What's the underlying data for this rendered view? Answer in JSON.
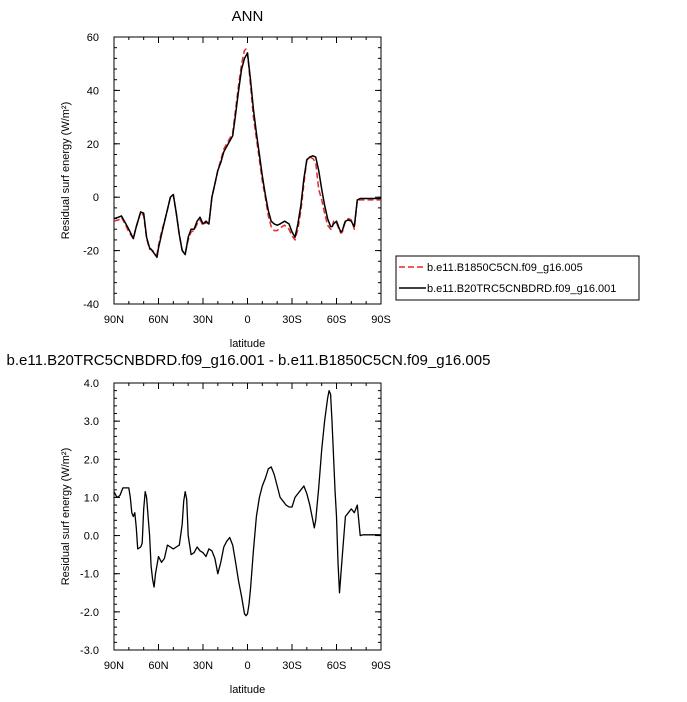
{
  "chart_data": [
    {
      "type": "line",
      "title": "ANN",
      "xlabel": "latitude",
      "ylabel": "Residual surf energy (W/m²)",
      "x_ticks": [
        90,
        60,
        30,
        0,
        -30,
        -60,
        -90
      ],
      "x_tick_labels": [
        "90N",
        "60N",
        "30N",
        "0",
        "30S",
        "60S",
        "90S"
      ],
      "xlim": [
        90,
        -90
      ],
      "ylim": [
        -40,
        60
      ],
      "y_ticks": [
        -40,
        -20,
        0,
        20,
        40,
        60
      ],
      "y_tick_labels": [
        "-40",
        "-20",
        "0",
        "20",
        "40",
        "60"
      ],
      "legend_position": "right",
      "series": [
        {
          "name": "b.e11.B1850C5CN.f09_g16.005",
          "color": "#e8272b",
          "dash": "dashed",
          "x": [
            90,
            87,
            85,
            83,
            80,
            77,
            75,
            72,
            70,
            68,
            66,
            65,
            63,
            61,
            60,
            58,
            55,
            52,
            50,
            48,
            46,
            44,
            42,
            40,
            38,
            36,
            34,
            32,
            30,
            28,
            26,
            24,
            22,
            20,
            18,
            16,
            14,
            12,
            10,
            8,
            6,
            4,
            2,
            1,
            0,
            -2,
            -4,
            -6,
            -8,
            -10,
            -12,
            -14,
            -16,
            -18,
            -20,
            -22,
            -25,
            -28,
            -30,
            -32,
            -34,
            -36,
            -38,
            -40,
            -42,
            -44,
            -46,
            -48,
            -50,
            -52,
            -54,
            -56,
            -57,
            -58,
            -60,
            -62,
            -63,
            -64,
            -65,
            -66,
            -68,
            -70,
            -72,
            -74,
            -76,
            -78,
            -80,
            -82,
            -85,
            -88,
            -90
          ],
          "y": [
            -9,
            -8.5,
            -7.5,
            -9.5,
            -13,
            -15.5,
            -11,
            -5.5,
            -7,
            -15.5,
            -19.5,
            -19.5,
            -20.5,
            -21.5,
            -18,
            -13,
            -7,
            0,
            1,
            -6,
            -14,
            -20,
            -21,
            -16,
            -13,
            -12.5,
            -10,
            -8.5,
            -10.5,
            -9.5,
            -10,
            0,
            5,
            10,
            14,
            18,
            20,
            22,
            24,
            33,
            42,
            50,
            55,
            55.5,
            54,
            42,
            30,
            22,
            14,
            6,
            0,
            -7,
            -11,
            -12.5,
            -12.5,
            -11.5,
            -10.5,
            -12,
            -14.5,
            -16,
            -12,
            -5,
            5,
            14,
            15,
            14.5,
            13,
            3,
            -1,
            -6,
            -10.5,
            -12,
            -12,
            -9,
            -9.5,
            -12.5,
            -13.5,
            -13,
            -11,
            -9,
            -8,
            -8.5,
            -12,
            -1,
            -1,
            -1,
            -1,
            -1,
            -1,
            -1,
            -1
          ],
          "stroke_width": 1.5
        },
        {
          "name": "b.e11.B20TRC5CNBDRD.f09_g16.001",
          "color": "#000000",
          "dash": "solid",
          "x": [
            90,
            87,
            85,
            83,
            80,
            77,
            75,
            72,
            70,
            68,
            66,
            65,
            63,
            61,
            60,
            58,
            55,
            52,
            50,
            48,
            46,
            44,
            42,
            40,
            38,
            36,
            34,
            32,
            30,
            28,
            26,
            24,
            22,
            20,
            18,
            16,
            14,
            12,
            10,
            8,
            6,
            4,
            2,
            1,
            0,
            -2,
            -4,
            -6,
            -8,
            -10,
            -12,
            -14,
            -16,
            -18,
            -20,
            -22,
            -25,
            -28,
            -30,
            -32,
            -34,
            -36,
            -38,
            -40,
            -42,
            -44,
            -46,
            -48,
            -50,
            -52,
            -54,
            -56,
            -57,
            -58,
            -60,
            -62,
            -63,
            -64,
            -65,
            -66,
            -68,
            -70,
            -72,
            -74,
            -76,
            -78,
            -80,
            -82,
            -85,
            -88,
            -90
          ],
          "y": [
            -8,
            -7.5,
            -7,
            -9,
            -12,
            -15.5,
            -11,
            -5.5,
            -6,
            -15,
            -19,
            -19.5,
            -21,
            -22.5,
            -19,
            -14,
            -7,
            0,
            1,
            -6,
            -14,
            -20,
            -21.5,
            -15,
            -12,
            -12,
            -9,
            -7.5,
            -10,
            -9,
            -10,
            0,
            5,
            10,
            13,
            17,
            19,
            21,
            23,
            31,
            40,
            48,
            52,
            53,
            54,
            44,
            33,
            24,
            16,
            8,
            1,
            -5,
            -9,
            -10,
            -10.5,
            -10,
            -9,
            -10,
            -13,
            -15,
            -10,
            -3,
            7,
            14,
            15,
            15.5,
            15,
            10,
            3,
            -3,
            -8,
            -11,
            -11,
            -10,
            -9,
            -12,
            -13,
            -12.5,
            -10.5,
            -9,
            -8.5,
            -9,
            -11,
            -1,
            -0.5,
            -0.5,
            -0.5,
            -0.5,
            -0.5,
            -0.5,
            -0.5
          ],
          "stroke_width": 1.5
        }
      ]
    },
    {
      "type": "line",
      "title": "b.e11.B20TRC5CNBDRD.f09_g16.001 - b.e11.B1850C5CN.f09_g16.005",
      "xlabel": "latitude",
      "ylabel": "Residual surf energy (W/m²)",
      "x_ticks": [
        90,
        60,
        30,
        0,
        -30,
        -60,
        -90
      ],
      "x_tick_labels": [
        "90N",
        "60N",
        "30N",
        "0",
        "30S",
        "60S",
        "90S"
      ],
      "xlim": [
        90,
        -90
      ],
      "ylim": [
        -3,
        4
      ],
      "y_ticks": [
        -3,
        -2,
        -1,
        0,
        1,
        2,
        3,
        4
      ],
      "y_tick_labels": [
        "-3.0",
        "-2.0",
        "-1.0",
        "0.0",
        "1.0",
        "2.0",
        "3.0",
        "4.0"
      ],
      "series": [
        {
          "name": "",
          "color": "#000000",
          "dash": "solid",
          "x": [
            90,
            88,
            86,
            84,
            82,
            80,
            79,
            78,
            77,
            76,
            75,
            74,
            72,
            71,
            70,
            69,
            68,
            67,
            66,
            65,
            64,
            63,
            62,
            60,
            58,
            56,
            54,
            52,
            50,
            48,
            46,
            44,
            43,
            42,
            41,
            40,
            38,
            36,
            34,
            32,
            30,
            28,
            26,
            24,
            22,
            20,
            18,
            16,
            14,
            12,
            10,
            8,
            6,
            4,
            2,
            1,
            0,
            -1,
            -2,
            -4,
            -6,
            -8,
            -10,
            -12,
            -14,
            -16,
            -18,
            -20,
            -22,
            -24,
            -26,
            -28,
            -30,
            -32,
            -34,
            -36,
            -38,
            -40,
            -42,
            -44,
            -45,
            -46,
            -48,
            -50,
            -52,
            -54,
            -55,
            -56,
            -57,
            -58,
            -59,
            -60,
            -61,
            -62,
            -64,
            -66,
            -68,
            -70,
            -72,
            -74,
            -76,
            -78,
            -80,
            -82,
            -85,
            -88,
            -90
          ],
          "y": [
            1.15,
            1.0,
            1.05,
            1.25,
            1.25,
            1.25,
            1.0,
            0.6,
            0.5,
            0.6,
            0.2,
            -0.35,
            -0.3,
            -0.2,
            0.7,
            1.15,
            1.0,
            0.5,
            0.0,
            -0.8,
            -1.15,
            -1.35,
            -1.0,
            -0.55,
            -0.7,
            -0.6,
            -0.25,
            -0.3,
            -0.35,
            -0.3,
            -0.25,
            0.3,
            0.9,
            1.15,
            0.95,
            0.0,
            -0.5,
            -0.45,
            -0.3,
            -0.4,
            -0.45,
            -0.55,
            -0.35,
            -0.4,
            -0.6,
            -1.0,
            -0.7,
            -0.3,
            -0.15,
            -0.05,
            -0.25,
            -0.7,
            -1.2,
            -1.6,
            -2.05,
            -2.1,
            -2.05,
            -1.8,
            -1.4,
            -0.4,
            0.5,
            1.0,
            1.3,
            1.5,
            1.75,
            1.8,
            1.6,
            1.3,
            1.0,
            0.9,
            0.8,
            0.75,
            0.75,
            1.0,
            1.1,
            1.2,
            1.3,
            1.1,
            0.8,
            0.4,
            0.2,
            0.4,
            1.25,
            2.25,
            3.0,
            3.6,
            3.8,
            3.7,
            3.0,
            2.1,
            1.2,
            0.5,
            -0.7,
            -1.5,
            -0.5,
            0.5,
            0.6,
            0.7,
            0.6,
            0.8,
            0.0,
            0.02,
            0.02,
            0.02,
            0.02,
            0.02,
            0.02
          ]
        }
      ]
    }
  ]
}
